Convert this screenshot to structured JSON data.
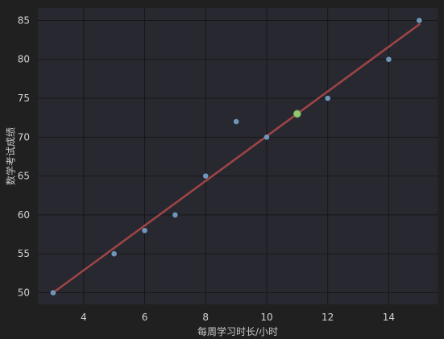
{
  "chart_data": {
    "type": "scatter",
    "title": "",
    "xlabel": "每周学习时长/小时",
    "ylabel": "数学考试成绩",
    "xlim": [
      2.5,
      15.6
    ],
    "ylim": [
      48.5,
      86.6
    ],
    "xticks": [
      4,
      6,
      8,
      10,
      12,
      14
    ],
    "yticks": [
      50,
      55,
      60,
      65,
      70,
      75,
      80,
      85
    ],
    "grid": true,
    "series": [
      {
        "kind": "scatter",
        "x": [
          3,
          5,
          6,
          7,
          8,
          9,
          10,
          11,
          12,
          14,
          15
        ],
        "y": [
          50,
          55,
          58,
          60,
          65,
          72,
          70,
          73,
          75,
          80,
          85
        ]
      },
      {
        "kind": "line",
        "x": [
          3,
          15
        ],
        "y": [
          50,
          84.5
        ]
      }
    ],
    "highlight": {
      "x": 11,
      "y": 73
    },
    "colors": {
      "background": "#202020",
      "plot_background": "#282831",
      "grid": "#161619",
      "points": "#6f95b8",
      "fit_line": "#a04545",
      "highlight": "#92c86e"
    }
  }
}
